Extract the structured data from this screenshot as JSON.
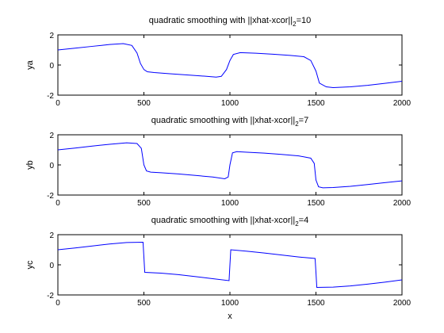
{
  "chart_data": [
    {
      "type": "line",
      "title": "quadratic smoothing with ||xhat-xcor||",
      "title_sub": "2",
      "title_tail": "=10",
      "xlabel": "",
      "ylabel": "ya",
      "xlim": [
        0,
        2000
      ],
      "ylim": [
        -2,
        2
      ],
      "xticks": [
        0,
        500,
        1000,
        1500,
        2000
      ],
      "yticks": [
        -2,
        0,
        2
      ],
      "series": [
        {
          "color": "#0000ff",
          "x": [
            0,
            100,
            200,
            300,
            380,
            430,
            460,
            480,
            500,
            520,
            560,
            650,
            750,
            850,
            920,
            950,
            980,
            1000,
            1020,
            1060,
            1150,
            1250,
            1350,
            1430,
            1470,
            1500,
            1520,
            1560,
            1600,
            1700,
            1800,
            1900,
            2000
          ],
          "y": [
            1.0,
            1.12,
            1.24,
            1.36,
            1.42,
            1.3,
            0.8,
            0.1,
            -0.3,
            -0.45,
            -0.5,
            -0.58,
            -0.66,
            -0.74,
            -0.8,
            -0.75,
            -0.3,
            0.3,
            0.7,
            0.82,
            0.78,
            0.72,
            0.64,
            0.55,
            0.3,
            -0.4,
            -1.2,
            -1.45,
            -1.5,
            -1.45,
            -1.35,
            -1.22,
            -1.08
          ]
        }
      ]
    },
    {
      "type": "line",
      "title": "quadratic smoothing with ||xhat-xcor||",
      "title_sub": "2",
      "title_tail": "=7",
      "xlabel": "",
      "ylabel": "yb",
      "xlim": [
        0,
        2000
      ],
      "ylim": [
        -2,
        2
      ],
      "xticks": [
        0,
        500,
        1000,
        1500,
        2000
      ],
      "yticks": [
        -2,
        0,
        2
      ],
      "series": [
        {
          "color": "#0000ff",
          "x": [
            0,
            100,
            200,
            300,
            400,
            460,
            485,
            500,
            515,
            540,
            600,
            700,
            800,
            900,
            970,
            990,
            1000,
            1015,
            1040,
            1100,
            1200,
            1300,
            1400,
            1470,
            1490,
            1500,
            1515,
            1540,
            1600,
            1700,
            1800,
            1900,
            2000
          ],
          "y": [
            1.0,
            1.12,
            1.25,
            1.37,
            1.47,
            1.42,
            1.1,
            0.0,
            -0.4,
            -0.48,
            -0.52,
            -0.6,
            -0.7,
            -0.8,
            -0.92,
            -0.8,
            0.0,
            0.8,
            0.88,
            0.84,
            0.78,
            0.7,
            0.6,
            0.45,
            0.1,
            -1.0,
            -1.45,
            -1.52,
            -1.5,
            -1.42,
            -1.3,
            -1.18,
            -1.06
          ]
        }
      ]
    },
    {
      "type": "line",
      "title": "quadratic smoothing with ||xhat-xcor||",
      "title_sub": "2",
      "title_tail": "=4",
      "xlabel": "x",
      "ylabel": "yc",
      "xlim": [
        0,
        2000
      ],
      "ylim": [
        -2,
        2
      ],
      "xticks": [
        0,
        500,
        1000,
        1500,
        2000
      ],
      "yticks": [
        -2,
        0,
        2
      ],
      "series": [
        {
          "color": "#0000ff",
          "x": [
            0,
            100,
            200,
            300,
            400,
            495,
            500,
            505,
            600,
            700,
            800,
            900,
            995,
            1000,
            1005,
            1100,
            1200,
            1300,
            1400,
            1495,
            1500,
            1505,
            1600,
            1700,
            1800,
            1900,
            2000
          ],
          "y": [
            1.0,
            1.12,
            1.25,
            1.38,
            1.48,
            1.5,
            0.5,
            -0.5,
            -0.55,
            -0.65,
            -0.78,
            -0.92,
            -1.05,
            0.0,
            1.0,
            0.9,
            0.78,
            0.65,
            0.52,
            0.42,
            -0.5,
            -1.5,
            -1.48,
            -1.4,
            -1.28,
            -1.15,
            -1.0
          ]
        }
      ]
    }
  ]
}
